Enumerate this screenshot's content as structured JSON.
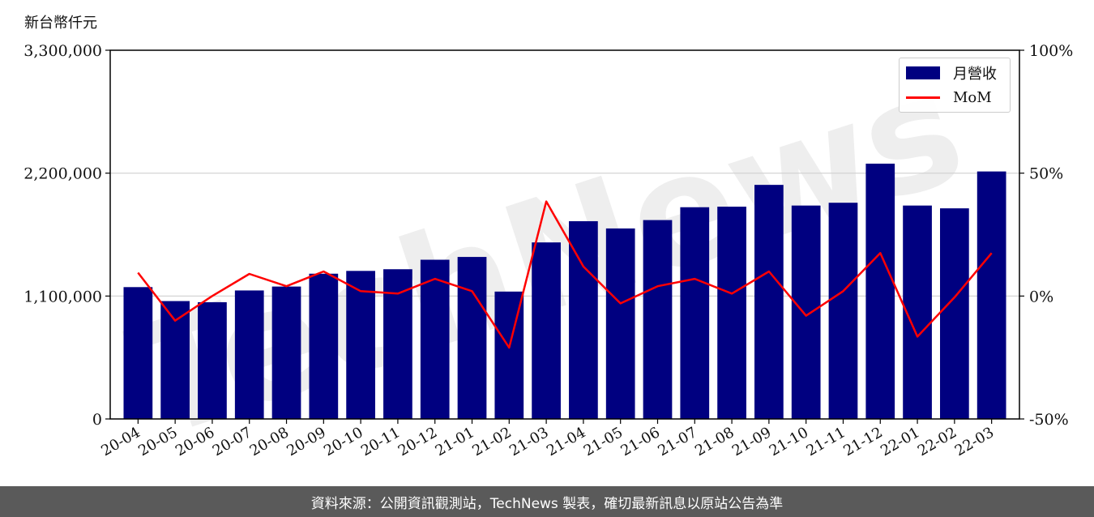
{
  "unit_label": "新台幣仟元",
  "footer_text": "資料來源：公開資訊觀測站，TechNews 製表，確切最新訊息以原站公告為準",
  "watermark_text": "TechNews",
  "colors": {
    "bar": "#000080",
    "line": "#ff0000",
    "grid": "#d0d0d0",
    "footer_bg": "#5a5a5a"
  },
  "chart_data": {
    "type": "bar",
    "categories": [
      "20-04",
      "20-05",
      "20-06",
      "20-07",
      "20-08",
      "20-09",
      "20-10",
      "20-11",
      "20-12",
      "21-01",
      "21-02",
      "21-03",
      "21-04",
      "21-05",
      "21-06",
      "21-07",
      "21-08",
      "21-09",
      "21-10",
      "21-11",
      "21-12",
      "22-01",
      "22-02",
      "22-03"
    ],
    "series": [
      {
        "name": "月營收",
        "type": "bar",
        "axis": "left",
        "values": [
          1180000,
          1055000,
          1045000,
          1150000,
          1185000,
          1300000,
          1325000,
          1340000,
          1425000,
          1450000,
          1140000,
          1580000,
          1770000,
          1705000,
          1780000,
          1895000,
          1900000,
          2095000,
          1910000,
          1935000,
          2285000,
          1910000,
          1885000,
          2215000
        ]
      },
      {
        "name": "MoM",
        "type": "line",
        "axis": "right",
        "unit": "%",
        "values": [
          9.5,
          -10.0,
          0.0,
          9.0,
          4.0,
          10.0,
          2.0,
          1.0,
          7.0,
          2.0,
          -21.0,
          38.5,
          12.0,
          -3.0,
          4.0,
          7.0,
          1.0,
          10.0,
          -8.0,
          2.0,
          17.5,
          -16.5,
          -0.5,
          17.5
        ]
      }
    ],
    "ylim_left": [
      0,
      3300000
    ],
    "yticks_left": [
      "0",
      "1,100,000",
      "2,200,000",
      "3,300,000"
    ],
    "ylim_right": [
      -50,
      100
    ],
    "yticks_right": [
      "-50%",
      "0%",
      "50%",
      "100%"
    ],
    "grid": "horizontal",
    "legend_placement": "top-right"
  }
}
